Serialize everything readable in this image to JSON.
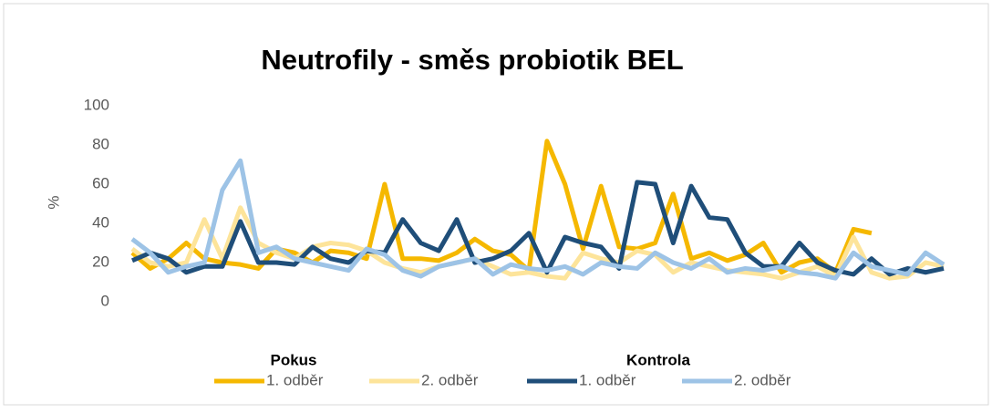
{
  "chart_data": {
    "type": "line",
    "title": "Neutrofily - směs probiotik BEL",
    "y_label": "%",
    "categories": [
      null,
      null,
      null,
      null,
      null,
      null,
      null,
      null,
      null,
      null,
      null,
      null,
      null,
      null,
      null,
      null,
      null,
      null,
      null,
      null,
      null,
      null,
      null,
      null,
      null,
      null,
      null,
      null,
      null,
      null,
      null,
      null,
      null,
      null,
      null,
      null,
      null,
      null,
      null,
      null,
      null,
      null,
      null,
      null,
      null,
      null
    ],
    "legend_groups": [
      "Pokus",
      "Kontrola"
    ],
    "series": [
      {
        "name": "1. odběr",
        "color": "#f5b800",
        "values": [
          25,
          17,
          22,
          30,
          22,
          20,
          19,
          17,
          27,
          25,
          20,
          26,
          25,
          22,
          60,
          22,
          22,
          21,
          25,
          32,
          26,
          24,
          16,
          82,
          60,
          27,
          59,
          28,
          27,
          30,
          55,
          22,
          25,
          21,
          24,
          30,
          15,
          20,
          22,
          15,
          37,
          35,
          null,
          null,
          null,
          null
        ]
      },
      {
        "name": "2. odběr",
        "color": "#fde49a",
        "values": [
          27,
          20,
          18,
          20,
          42,
          22,
          48,
          30,
          25,
          22,
          28,
          30,
          29,
          26,
          20,
          17,
          15,
          18,
          20,
          22,
          18,
          14,
          15,
          13,
          12,
          25,
          22,
          20,
          26,
          24,
          15,
          20,
          18,
          16,
          15,
          14,
          12,
          15,
          18,
          13,
          33,
          15,
          12,
          13,
          20,
          18
        ]
      },
      {
        "name": "1. odběr",
        "color": "#1f4e79",
        "values": [
          21,
          25,
          22,
          15,
          18,
          18,
          41,
          20,
          20,
          19,
          28,
          22,
          20,
          26,
          25,
          42,
          30,
          26,
          42,
          20,
          22,
          26,
          35,
          15,
          33,
          30,
          28,
          17,
          61,
          60,
          30,
          59,
          43,
          42,
          25,
          18,
          18,
          30,
          20,
          16,
          14,
          22,
          14,
          17,
          15,
          17
        ]
      },
      {
        "name": "2. odběr",
        "color": "#9dc3e6",
        "values": [
          32,
          25,
          15,
          18,
          20,
          57,
          72,
          25,
          28,
          22,
          20,
          18,
          16,
          27,
          24,
          16,
          13,
          18,
          20,
          22,
          14,
          19,
          17,
          16,
          18,
          14,
          20,
          18,
          17,
          25,
          20,
          17,
          22,
          15,
          17,
          16,
          18,
          15,
          14,
          12,
          25,
          18,
          16,
          14,
          25,
          19
        ]
      }
    ],
    "ylim": [
      0,
      100
    ],
    "yticks": [
      0,
      20,
      40,
      60,
      80,
      100
    ],
    "grid": false
  }
}
